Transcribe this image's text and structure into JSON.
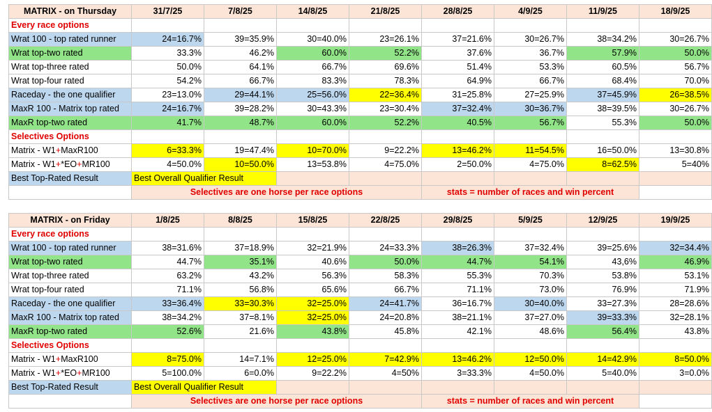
{
  "colors": {
    "header": "#fce4d6",
    "section_text": "#e00000",
    "blue": "#bdd7ee",
    "green": "#92e489",
    "yellow": "#ffff00"
  },
  "tables": [
    {
      "title": "MATRIX - on Thursday",
      "dates": [
        "31/7/25",
        "7/8/25",
        "14/8/25",
        "21/8/25",
        "28/8/25",
        "4/9/25",
        "11/9/25",
        "18/9/25"
      ],
      "section1": "Every race options",
      "rows1": [
        {
          "label": "Wrat 100 - top rated runner",
          "label_bg": "blue",
          "values": [
            "24=16.7%",
            "39=35.9%",
            "30=40.0%",
            "23=26.1%",
            "37=21.6%",
            "30=26.7%",
            "38=34.2%",
            "30=26.7%"
          ],
          "bg": [
            "blue",
            "",
            "",
            "",
            "",
            "",
            "",
            ""
          ]
        },
        {
          "label": "Wrat top-two rated",
          "label_bg": "green",
          "values": [
            "33.3%",
            "46.2%",
            "60.0%",
            "52.2%",
            "37.6%",
            "36.7%",
            "57.9%",
            "50.0%"
          ],
          "bg": [
            "",
            "",
            "green",
            "green",
            "",
            "",
            "green",
            "green"
          ]
        },
        {
          "label": "Wrat top-three rated",
          "label_bg": "",
          "values": [
            "50.0%",
            "64.1%",
            "66.7%",
            "69.6%",
            "51.4%",
            "53.3%",
            "60.5%",
            "56.7%"
          ],
          "bg": [
            "",
            "",
            "",
            "",
            "",
            "",
            "",
            ""
          ]
        },
        {
          "label": "Wrat top-four rated",
          "label_bg": "",
          "values": [
            "54.2%",
            "66.7%",
            "83.3%",
            "78.3%",
            "64.9%",
            "66.7%",
            "68.4%",
            "70.0%"
          ],
          "bg": [
            "",
            "",
            "",
            "",
            "",
            "",
            "",
            ""
          ]
        },
        {
          "label": "Raceday - the one qualifier",
          "label_bg": "blue",
          "values": [
            "23=13.0%",
            "29=44.1%",
            "25=56.0%",
            "22=36.4%",
            "31=25.8%",
            "27=25.9%",
            "37=45.9%",
            "26=38.5%"
          ],
          "bg": [
            "",
            "blue",
            "blue",
            "yellow",
            "",
            "",
            "blue",
            "yellow"
          ]
        },
        {
          "label": "MaxR 100 - Matrix top rated",
          "label_bg": "blue",
          "values": [
            "24=16.7%",
            "39=28.2%",
            "30=43.3%",
            "23=30.4%",
            "37=32.4%",
            "30=36.7%",
            "38=39.5%",
            "30=26.7%"
          ],
          "bg": [
            "blue",
            "",
            "",
            "",
            "blue",
            "blue",
            "",
            ""
          ]
        },
        {
          "label": "MaxR top-two rated",
          "label_bg": "green",
          "values": [
            "41.7%",
            "48.7%",
            "60.0%",
            "52.2%",
            "40.5%",
            "56.7%",
            "55.3%",
            "50.0%"
          ],
          "bg": [
            "green",
            "green",
            "green",
            "green",
            "green",
            "green",
            "",
            "green"
          ]
        }
      ],
      "section2": "Selectives Options",
      "rows2": [
        {
          "label_a": "Matrix - W1",
          "label_b": "MaxR100",
          "values": [
            "6=33.3%",
            "19=47.4%",
            "10=70.0%",
            "9=22.2%",
            "13=46.2%",
            "11=54.5%",
            "16=50.0%",
            "13=30.8%"
          ],
          "bg": [
            "yellow",
            "",
            "yellow",
            "",
            "yellow",
            "yellow",
            "",
            ""
          ]
        },
        {
          "label_a": "Matrix - W1",
          "label_b": "*EO",
          "label_c": "MR100",
          "values": [
            "4=50.0%",
            "10=50.0%",
            "13=53.8%",
            "4=75.0%",
            "2=50.0%",
            "4=75.0%",
            "8=62.5%",
            "5=40%"
          ],
          "bg": [
            "",
            "yellow",
            "",
            "",
            "",
            "",
            "yellow",
            ""
          ]
        }
      ],
      "legend_best_top": "Best Top-Rated Result",
      "legend_best_qual": "Best Overall Qualifier Result",
      "note_left": "Selectives are one horse per race options",
      "note_right": "stats = number of races and win percent"
    },
    {
      "title": "MATRIX - on Friday",
      "dates": [
        "1/8/25",
        "8/8/25",
        "15/8/25",
        "22/8/25",
        "29/8/25",
        "5/9/25",
        "12/9/25",
        "19/9/25"
      ],
      "section1": "Every race options",
      "rows1": [
        {
          "label": "Wrat 100 - top rated runner",
          "label_bg": "blue",
          "values": [
            "38=31.6%",
            "37=18.9%",
            "32=21.9%",
            "24=33.3%",
            "38=26.3%",
            "37=32.4%",
            "39=25.6%",
            "32=34.4%"
          ],
          "bg": [
            "",
            "",
            "",
            "",
            "blue",
            "",
            "",
            "blue"
          ]
        },
        {
          "label": "Wrat top-two rated",
          "label_bg": "green",
          "values": [
            "44.7%",
            "35.1%",
            "40.6%",
            "50.0%",
            "44.7%",
            "54.1%",
            "43,6%",
            "46.9%"
          ],
          "bg": [
            "",
            "green",
            "",
            "green",
            "green",
            "green",
            "",
            "green"
          ]
        },
        {
          "label": "Wrat top-three rated",
          "label_bg": "",
          "values": [
            "63.2%",
            "43.2%",
            "56.3%",
            "58.3%",
            "55.3%",
            "70.3%",
            "53.8%",
            "53.1%"
          ],
          "bg": [
            "",
            "",
            "",
            "",
            "",
            "",
            "",
            ""
          ]
        },
        {
          "label": "Wrat top-four rated",
          "label_bg": "",
          "values": [
            "71.1%",
            "56.8%",
            "65.6%",
            "66.7%",
            "71.1%",
            "73.0%",
            "76.9%",
            "71.9%"
          ],
          "bg": [
            "",
            "",
            "",
            "",
            "",
            "",
            "",
            ""
          ]
        },
        {
          "label": "Raceday - the one qualifier",
          "label_bg": "blue",
          "values": [
            "33=36.4%",
            "33=30.3%",
            "32=25.0%",
            "24=41.7%",
            "36=16.7%",
            "30=40.0%",
            "33=27.3%",
            "28=28.6%"
          ],
          "bg": [
            "blue",
            "yellow",
            "yellow",
            "blue",
            "",
            "blue",
            "",
            ""
          ]
        },
        {
          "label": "MaxR 100 - Matrix top rated",
          "label_bg": "blue",
          "values": [
            "38=34.2%",
            "37=8.1%",
            "32=25.0%",
            "24=20.8%",
            "38=21.1%",
            "37=27.0%",
            "39=33.3%",
            "32=28.1%"
          ],
          "bg": [
            "",
            "",
            "yellow",
            "",
            "",
            "",
            "blue",
            ""
          ]
        },
        {
          "label": "MaxR top-two rated",
          "label_bg": "green",
          "values": [
            "52.6%",
            "21.6%",
            "43.8%",
            "45.8%",
            "42.1%",
            "48.6%",
            "56.4%",
            "43.8%"
          ],
          "bg": [
            "green",
            "",
            "green",
            "",
            "",
            "",
            "green",
            ""
          ]
        }
      ],
      "section2": "Selectives Options",
      "rows2": [
        {
          "label_a": "Matrix - W1",
          "label_b": "MaxR100",
          "values": [
            "8=75.0%",
            "14=7.1%",
            "12=25.0%",
            "7=42.9%",
            "13=46.2%",
            "12=50.0%",
            "14=42.9%",
            "8=50.0%"
          ],
          "bg": [
            "yellow",
            "",
            "yellow",
            "yellow",
            "yellow",
            "yellow",
            "yellow",
            "yellow"
          ]
        },
        {
          "label_a": "Matrix - W1",
          "label_b": "*EO",
          "label_c": "MR100",
          "values": [
            "5=100.0%",
            "6=0.0%",
            "9=22.2%",
            "4=50%",
            "3=33.3%",
            "4=50.0%",
            "5=40.0%",
            "3=0.0%"
          ],
          "bg": [
            "",
            "",
            "",
            "",
            "",
            "",
            "",
            ""
          ]
        }
      ],
      "legend_best_top": "Best Top-Rated Result",
      "legend_best_qual": "Best Overall Qualifier Result",
      "note_left": "Selectives are one horse per race options",
      "note_right": "stats = number of races and win percent"
    }
  ]
}
